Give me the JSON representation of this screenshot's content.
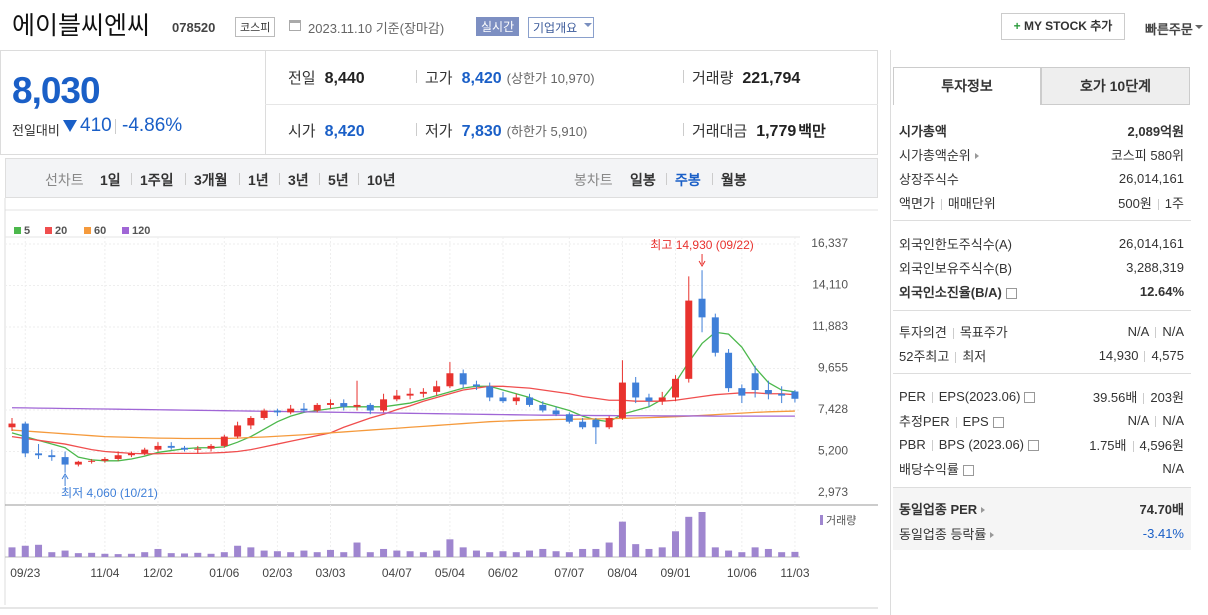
{
  "header": {
    "name": "에이블씨엔씨",
    "code": "078520",
    "market": "코스피",
    "date": "2023.11.10 기준(장마감)",
    "realtime": "실시간",
    "overview": "기업개요",
    "mystock": "MY STOCK 추가",
    "quick_order": "빠른주문"
  },
  "price": {
    "current": "8,030",
    "change_label": "전일대비",
    "change": "410",
    "change_rate": "-4.86%"
  },
  "quote": [
    {
      "label": "전일",
      "value": "8,440"
    },
    {
      "label": "고가",
      "value": "8,420",
      "sub": "(상한가 10,970)",
      "value_color": "#1a5fc7"
    },
    {
      "label": "거래량",
      "value": "221,794"
    },
    {
      "label": "시가",
      "value": "8,420",
      "value_color": "#1a5fc7"
    },
    {
      "label": "저가",
      "value": "7,830",
      "sub": "(하한가 5,910)",
      "value_color": "#1a5fc7"
    },
    {
      "label": "거래대금",
      "value": "1,779",
      "unit": "백만"
    }
  ],
  "period_tabs": {
    "line_label": "선차트",
    "line": [
      "1일",
      "1주일",
      "3개월",
      "1년",
      "3년",
      "5년",
      "10년"
    ],
    "candle_label": "봉차트",
    "candle": [
      "일봉",
      "주봉",
      "월봉"
    ],
    "active_index": 1
  },
  "invest_tabs": [
    "투자정보",
    "호가 10단계"
  ],
  "invest_sections": [
    [
      {
        "label": [
          "시가총액"
        ],
        "value": [
          "2,089억원"
        ],
        "bold": true
      },
      {
        "label": [
          "시가총액순위"
        ],
        "icon": "arrow",
        "value": [
          "코스피 580위"
        ]
      },
      {
        "label": [
          "상장주식수"
        ],
        "value": [
          "26,014,161"
        ]
      },
      {
        "label": [
          "액면가",
          "매매단위"
        ],
        "value": [
          "500원",
          "1주"
        ]
      }
    ],
    [
      {
        "label": [
          "외국인한도주식수(A)"
        ],
        "value": [
          "26,014,161"
        ]
      },
      {
        "label": [
          "외국인보유주식수(B)"
        ],
        "value": [
          "3,288,319"
        ]
      },
      {
        "label": [
          "외국인소진율(B/A)"
        ],
        "icon": "help",
        "value": [
          "12.64%"
        ],
        "bold": true
      }
    ],
    [
      {
        "label": [
          "투자의견",
          "목표주가"
        ],
        "value": [
          "N/A",
          "N/A"
        ]
      },
      {
        "label": [
          "52주최고",
          "최저"
        ],
        "value": [
          "14,930",
          "4,575"
        ]
      }
    ],
    [
      {
        "label": [
          "PER",
          "EPS(2023.06)"
        ],
        "icon": "help",
        "value": [
          "39.56배",
          "203원"
        ]
      },
      {
        "label": [
          "추정PER",
          "EPS"
        ],
        "icon": "help",
        "value": [
          "N/A",
          "N/A"
        ]
      },
      {
        "label": [
          "PBR",
          "BPS (2023.06)"
        ],
        "icon": "help",
        "value": [
          "1.75배",
          "4,596원"
        ]
      },
      {
        "label": [
          "배당수익률"
        ],
        "icon": "help",
        "value": [
          "N/A"
        ]
      }
    ],
    [
      {
        "label": [
          "동일업종 PER"
        ],
        "icon": "arrow",
        "value": [
          "74.70배"
        ],
        "bold": true
      },
      {
        "label": [
          "동일업종 등락률"
        ],
        "icon": "arrow",
        "value": [
          "-3.41%"
        ],
        "color": "#1a5fc7"
      }
    ]
  ],
  "chart_data": {
    "type": "candlestick",
    "categories": [
      null,
      "09/23",
      null,
      null,
      null,
      null,
      null,
      "11/04",
      null,
      null,
      null,
      "12/02",
      null,
      null,
      null,
      null,
      "01/06",
      null,
      null,
      null,
      "02/03",
      null,
      null,
      null,
      "03/03",
      null,
      null,
      null,
      null,
      "04/07",
      null,
      null,
      null,
      "05/04",
      null,
      null,
      null,
      "06/02",
      null,
      null,
      null,
      null,
      "07/07",
      null,
      null,
      null,
      "08/04",
      null,
      null,
      null,
      "09/01",
      null,
      null,
      null,
      null,
      "10/06",
      null,
      null,
      null,
      "11/03"
    ],
    "open": [
      6500,
      6700,
      5100,
      5000,
      4900,
      4500,
      4650,
      4700,
      4800,
      5000,
      5100,
      5300,
      5500,
      5400,
      5300,
      5350,
      5500,
      6000,
      6600,
      7000,
      7400,
      7300,
      7500,
      7400,
      7700,
      7800,
      7600,
      7700,
      7400,
      8000,
      8200,
      8300,
      8400,
      8700,
      9400,
      8800,
      8700,
      8100,
      7900,
      8100,
      7700,
      7400,
      7200,
      6800,
      6900,
      6500,
      7000,
      8900,
      8100,
      7900,
      8100,
      9100,
      13400,
      12400,
      10500,
      8600,
      9400,
      8500,
      8300,
      8420
    ],
    "high": [
      7000,
      6800,
      5600,
      5300,
      5200,
      4700,
      4800,
      4900,
      5200,
      5200,
      5400,
      5700,
      5700,
      5500,
      5500,
      5600,
      6100,
      6800,
      7100,
      7500,
      7500,
      7700,
      7800,
      7800,
      8000,
      8000,
      9000,
      7800,
      8300,
      8500,
      8600,
      8600,
      9000,
      10000,
      9600,
      9000,
      8900,
      8400,
      8300,
      8300,
      7900,
      7600,
      7300,
      7000,
      7000,
      7100,
      10100,
      9200,
      8300,
      8400,
      9300,
      14600,
      14930,
      12600,
      10700,
      8800,
      9800,
      9000,
      8700,
      8500
    ],
    "low": [
      6300,
      4900,
      4800,
      4700,
      4060,
      4400,
      4550,
      4600,
      4700,
      4900,
      5000,
      5200,
      5300,
      5200,
      5100,
      5200,
      5400,
      5900,
      6400,
      6900,
      7100,
      7200,
      7300,
      7300,
      7500,
      7400,
      7400,
      7200,
      7300,
      7900,
      8000,
      8100,
      8200,
      8600,
      8600,
      8500,
      7900,
      7800,
      7700,
      7600,
      7300,
      7100,
      6700,
      6400,
      5600,
      6400,
      6900,
      7800,
      7600,
      7700,
      7900,
      8900,
      11600,
      10300,
      8400,
      7800,
      8100,
      8000,
      7800,
      7830
    ],
    "close": [
      6700,
      5100,
      5000,
      4900,
      4500,
      4650,
      4700,
      4800,
      5000,
      5100,
      5300,
      5500,
      5400,
      5300,
      5350,
      5500,
      6000,
      6600,
      7000,
      7400,
      7300,
      7500,
      7400,
      7700,
      7800,
      7600,
      7700,
      7400,
      8000,
      8200,
      8300,
      8400,
      8700,
      9400,
      8800,
      8700,
      8100,
      7900,
      8100,
      7700,
      7400,
      7200,
      6800,
      6500,
      6500,
      7000,
      8900,
      8100,
      7900,
      8100,
      9100,
      13300,
      12400,
      10500,
      8600,
      8200,
      8500,
      8300,
      8200,
      8030
    ],
    "up_color": "#e8322e",
    "down_color": "#3f7fd8",
    "volume": [
      300000,
      350000,
      380000,
      150000,
      200000,
      120000,
      130000,
      100000,
      90000,
      100000,
      150000,
      250000,
      120000,
      110000,
      130000,
      100000,
      150000,
      350000,
      300000,
      200000,
      180000,
      150000,
      200000,
      150000,
      220000,
      150000,
      450000,
      150000,
      250000,
      200000,
      180000,
      150000,
      200000,
      550000,
      300000,
      200000,
      150000,
      180000,
      150000,
      200000,
      250000,
      180000,
      150000,
      250000,
      250000,
      450000,
      1100000,
      400000,
      250000,
      300000,
      800000,
      1250000,
      1400000,
      300000,
      200000,
      150000,
      300000,
      250000,
      150000,
      160000
    ],
    "volume_label": "거래량",
    "volume_color": "#9f86cf",
    "moving_averages": [
      {
        "name": "5",
        "color": "#4cb84c",
        "values": [
          6200,
          6000,
          5800,
          5600,
          5400,
          4900,
          4750,
          4700,
          4700,
          4800,
          4950,
          5150,
          5250,
          5350,
          5400,
          5400,
          5450,
          5700,
          6000,
          6400,
          6800,
          7100,
          7300,
          7400,
          7500,
          7600,
          7600,
          7600,
          7600,
          7700,
          7800,
          8000,
          8200,
          8400,
          8600,
          8700,
          8700,
          8500,
          8300,
          8100,
          7800,
          7600,
          7400,
          7100,
          6900,
          6800,
          7200,
          7400,
          7600,
          8000,
          8900,
          10000,
          11000,
          11600,
          11500,
          10800,
          9700,
          8900,
          8500,
          8400
        ]
      },
      {
        "name": "20",
        "color": "#f04e4e",
        "values": [
          6000,
          5900,
          5800,
          5700,
          5600,
          5450,
          5300,
          5200,
          5150,
          5100,
          5080,
          5080,
          5100,
          5100,
          5100,
          5120,
          5150,
          5200,
          5300,
          5450,
          5600,
          5750,
          5900,
          6050,
          6200,
          6500,
          6750,
          7000,
          7200,
          7450,
          7650,
          7900,
          8100,
          8300,
          8500,
          8600,
          8700,
          8700,
          8650,
          8600,
          8500,
          8400,
          8300,
          8150,
          8050,
          7950,
          7950,
          7900,
          7900,
          7900,
          7950,
          8050,
          8150,
          8250,
          8300,
          8350,
          8350,
          8300,
          8300,
          8250
        ]
      },
      {
        "name": "60",
        "color": "#f59a3c",
        "values": [
          6350,
          6300,
          6250,
          6200,
          6150,
          6100,
          6050,
          6000,
          5980,
          5960,
          5940,
          5920,
          5910,
          5900,
          5900,
          5900,
          5900,
          5920,
          5950,
          5980,
          6020,
          6060,
          6100,
          6150,
          6200,
          6250,
          6300,
          6350,
          6400,
          6450,
          6500,
          6550,
          6600,
          6650,
          6700,
          6750,
          6800,
          6830,
          6860,
          6880,
          6900,
          6920,
          6930,
          6940,
          6950,
          6960,
          6980,
          7000,
          7020,
          7040,
          7070,
          7100,
          7140,
          7180,
          7220,
          7260,
          7300,
          7330,
          7350,
          7370
        ]
      },
      {
        "name": "120",
        "color": "#a066d6",
        "values": [
          7550,
          7540,
          7530,
          7520,
          7510,
          7500,
          7490,
          7480,
          7470,
          7460,
          7450,
          7440,
          7430,
          7420,
          7410,
          7400,
          7390,
          7380,
          7370,
          7360,
          7350,
          7340,
          7330,
          7320,
          7310,
          7300,
          7290,
          7280,
          7270,
          7260,
          7250,
          7240,
          7230,
          7220,
          7210,
          7200,
          7190,
          7180,
          7170,
          7160,
          7150,
          7150,
          7140,
          7140,
          7130,
          7130,
          7120,
          7120,
          7120,
          7110,
          7110,
          7110,
          7110,
          7100,
          7100,
          7100,
          7100,
          7100,
          7100,
          7100
        ]
      }
    ],
    "ylim": [
      2973,
      16337
    ],
    "yticks": [
      {
        "value": 16337,
        "label": "16,337"
      },
      {
        "value": 14110,
        "label": "14,110"
      },
      {
        "value": 11883,
        "label": "11,883"
      },
      {
        "value": 9655,
        "label": "9,655"
      },
      {
        "value": 7428,
        "label": "7,428"
      },
      {
        "value": 5200,
        "label": "5,200"
      },
      {
        "value": 2973,
        "label": "2,973"
      }
    ],
    "grid": true,
    "annotations": [
      "최고 14,930 (09/22)",
      "최저 4,060 (10/21)"
    ]
  }
}
